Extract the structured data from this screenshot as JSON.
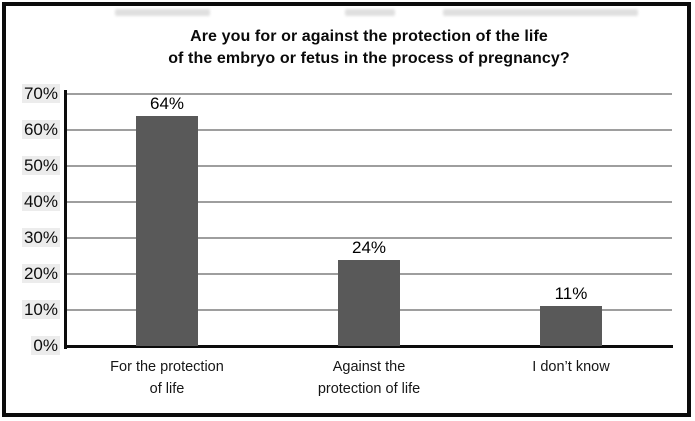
{
  "figure": {
    "background": "#ffffff",
    "border_color": "#0b0b0b"
  },
  "chart_data": {
    "type": "bar",
    "title": "Are you for or against the protection of the life of the embryo or fetus in the process of pregnancy?",
    "title_lines": [
      "Are you for or against the protection of the life",
      "of the embryo or fetus in the process of pregnancy?"
    ],
    "categories": [
      "For the protection of life",
      "Against the protection of life",
      "I don’t know"
    ],
    "category_label_lines": [
      [
        "For the protection",
        "of life"
      ],
      [
        "Against the",
        "protection of life"
      ],
      [
        "I don’t know"
      ]
    ],
    "values": [
      64,
      24,
      11
    ],
    "value_labels": [
      "64%",
      "24%",
      "11%"
    ],
    "unit": "%",
    "ylim": [
      0,
      70
    ],
    "ytick_interval": 10,
    "ytick_labels": [
      "0%",
      "10%",
      "20%",
      "30%",
      "40%",
      "50%",
      "60%",
      "70%"
    ],
    "grid": true,
    "legend": "none",
    "colors": {
      "bar": "#595959",
      "gridline": "#9e9e9e",
      "axis": "#0c0c0c",
      "text": "#000000",
      "tick_label_bg": "#ececec"
    }
  }
}
